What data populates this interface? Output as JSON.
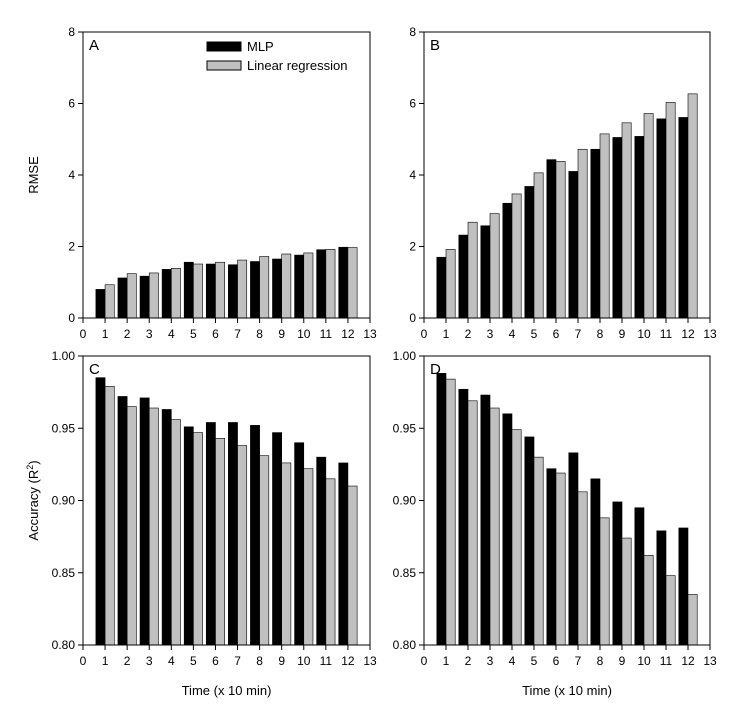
{
  "legend": {
    "series_names": [
      "MLP",
      "Linear regression"
    ]
  },
  "colors": {
    "mlp": "#000000",
    "linear_regression": "#c0c0c0",
    "bar_outline": "#000000"
  },
  "chart_data": [
    {
      "type": "bar",
      "panel": "A",
      "xlabel": "",
      "ylabel": "RMSE",
      "categories": [
        1,
        2,
        3,
        4,
        5,
        6,
        7,
        8,
        9,
        10,
        11,
        12
      ],
      "xlim": [
        0,
        13
      ],
      "ylim": [
        0,
        8
      ],
      "yticks": [
        0,
        2,
        4,
        6,
        8
      ],
      "xticks": [
        0,
        1,
        2,
        3,
        4,
        5,
        6,
        7,
        8,
        9,
        10,
        11,
        12,
        13
      ],
      "ytick_decimals": 0,
      "legend": "top-center",
      "grid": false,
      "series": [
        {
          "name": "MLP",
          "values": [
            0.8,
            1.12,
            1.17,
            1.36,
            1.56,
            1.51,
            1.49,
            1.58,
            1.65,
            1.76,
            1.91,
            1.98
          ]
        },
        {
          "name": "Linear regression",
          "values": [
            0.93,
            1.24,
            1.26,
            1.39,
            1.51,
            1.56,
            1.62,
            1.72,
            1.79,
            1.82,
            1.92,
            1.97
          ]
        }
      ]
    },
    {
      "type": "bar",
      "panel": "B",
      "xlabel": "",
      "ylabel": "",
      "categories": [
        1,
        2,
        3,
        4,
        5,
        6,
        7,
        8,
        9,
        10,
        11,
        12
      ],
      "xlim": [
        0,
        13
      ],
      "ylim": [
        0,
        8
      ],
      "yticks": [
        0,
        2,
        4,
        6,
        8
      ],
      "xticks": [
        0,
        1,
        2,
        3,
        4,
        5,
        6,
        7,
        8,
        9,
        10,
        11,
        12,
        13
      ],
      "ytick_decimals": 0,
      "grid": false,
      "series": [
        {
          "name": "MLP",
          "values": [
            1.7,
            2.32,
            2.58,
            3.21,
            3.68,
            4.43,
            4.1,
            4.72,
            5.05,
            5.08,
            5.57,
            5.61
          ]
        },
        {
          "name": "Linear regression",
          "values": [
            1.92,
            2.68,
            2.92,
            3.47,
            4.06,
            4.38,
            4.72,
            5.15,
            5.46,
            5.72,
            6.03,
            6.27
          ]
        }
      ]
    },
    {
      "type": "bar",
      "panel": "C",
      "xlabel": "Time (x 10 min)",
      "ylabel": "Accuracy (R",
      "ylabel_superscript": "2",
      "ylabel_suffix": ")",
      "categories": [
        1,
        2,
        3,
        4,
        5,
        6,
        7,
        8,
        9,
        10,
        11,
        12
      ],
      "xlim": [
        0,
        13
      ],
      "ylim": [
        0.8,
        1.0
      ],
      "yticks": [
        0.8,
        0.85,
        0.9,
        0.95,
        1.0
      ],
      "xticks": [
        0,
        1,
        2,
        3,
        4,
        5,
        6,
        7,
        8,
        9,
        10,
        11,
        12,
        13
      ],
      "ytick_decimals": 2,
      "grid": false,
      "series": [
        {
          "name": "MLP",
          "values": [
            0.985,
            0.972,
            0.971,
            0.963,
            0.951,
            0.954,
            0.954,
            0.952,
            0.947,
            0.94,
            0.93,
            0.926
          ]
        },
        {
          "name": "Linear regression",
          "values": [
            0.979,
            0.965,
            0.964,
            0.956,
            0.947,
            0.943,
            0.938,
            0.931,
            0.926,
            0.922,
            0.915,
            0.91
          ]
        }
      ]
    },
    {
      "type": "bar",
      "panel": "D",
      "xlabel": "Time (x 10 min)",
      "ylabel": "",
      "categories": [
        1,
        2,
        3,
        4,
        5,
        6,
        7,
        8,
        9,
        10,
        11,
        12
      ],
      "xlim": [
        0,
        13
      ],
      "ylim": [
        0.8,
        1.0
      ],
      "yticks": [
        0.8,
        0.85,
        0.9,
        0.95,
        1.0
      ],
      "xticks": [
        0,
        1,
        2,
        3,
        4,
        5,
        6,
        7,
        8,
        9,
        10,
        11,
        12,
        13
      ],
      "ytick_decimals": 2,
      "grid": false,
      "series": [
        {
          "name": "MLP",
          "values": [
            0.988,
            0.977,
            0.973,
            0.96,
            0.944,
            0.922,
            0.933,
            0.915,
            0.899,
            0.895,
            0.879,
            0.881
          ]
        },
        {
          "name": "Linear regression",
          "values": [
            0.984,
            0.969,
            0.964,
            0.949,
            0.93,
            0.919,
            0.906,
            0.888,
            0.874,
            0.862,
            0.848,
            0.835
          ]
        }
      ]
    }
  ]
}
